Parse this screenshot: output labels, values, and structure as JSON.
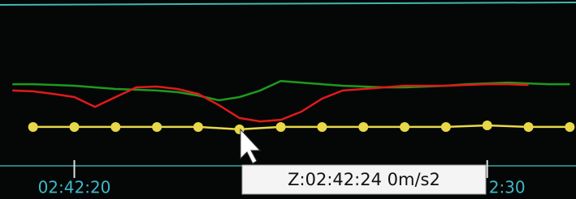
{
  "chart_data": {
    "type": "line",
    "annotation": "Z:02:42:24 0m/s2",
    "xlim": [
      18.2,
      32.15
    ],
    "ylim": [
      0,
      100
    ],
    "xticks": [
      {
        "value": 20,
        "label": "02:42:20"
      },
      {
        "value": 30,
        "label": "2:30"
      }
    ],
    "series": [
      {
        "color": "#1e9a1e",
        "markers": false,
        "x": [
          18.5,
          19,
          19.5,
          20,
          20.5,
          21,
          21.5,
          22,
          22.5,
          23,
          23.5,
          24,
          24.5,
          25,
          25.5,
          26,
          26.5,
          27,
          27.5,
          28,
          28.5,
          29,
          29.5,
          30,
          30.5,
          31,
          31.5,
          32
        ],
        "values": [
          57.7,
          57.7,
          57.3,
          56.9,
          56.1,
          55.3,
          54.9,
          54.5,
          53.7,
          52.0,
          49.6,
          51.2,
          54.5,
          59.3,
          58.5,
          57.7,
          56.9,
          56.5,
          56.1,
          56.1,
          56.5,
          56.9,
          57.7,
          58.1,
          58.5,
          58.1,
          57.7,
          57.7
        ]
      },
      {
        "color": "#e01a1a",
        "markers": false,
        "x": [
          18.5,
          19,
          19.5,
          20,
          20.5,
          21,
          21.5,
          22,
          22.5,
          23,
          23.5,
          24,
          24.5,
          25,
          25.5,
          26,
          26.5,
          27,
          27.5,
          28,
          28.5,
          29,
          29.5,
          30,
          30.5,
          31,
          31.5,
          32
        ],
        "values": [
          54.5,
          54.1,
          52.8,
          51.2,
          46.3,
          51.2,
          56.1,
          56.5,
          55.3,
          52.8,
          47.2,
          40.7,
          39.0,
          39.8,
          43.9,
          50.4,
          54.5,
          55.3,
          56.1,
          56.9,
          56.9,
          56.9,
          57.3,
          57.7,
          57.7,
          57.3,
          null,
          null
        ]
      },
      {
        "color": "#e8d84a",
        "markers": true,
        "x": [
          19,
          20,
          21,
          22,
          23,
          24,
          25,
          26,
          27,
          28,
          29,
          30,
          31,
          32
        ],
        "values": [
          36.2,
          36.2,
          36.2,
          36.2,
          36.2,
          35.0,
          36.2,
          36.2,
          36.2,
          36.2,
          36.2,
          37.0,
          36.2,
          36.2
        ]
      }
    ]
  }
}
